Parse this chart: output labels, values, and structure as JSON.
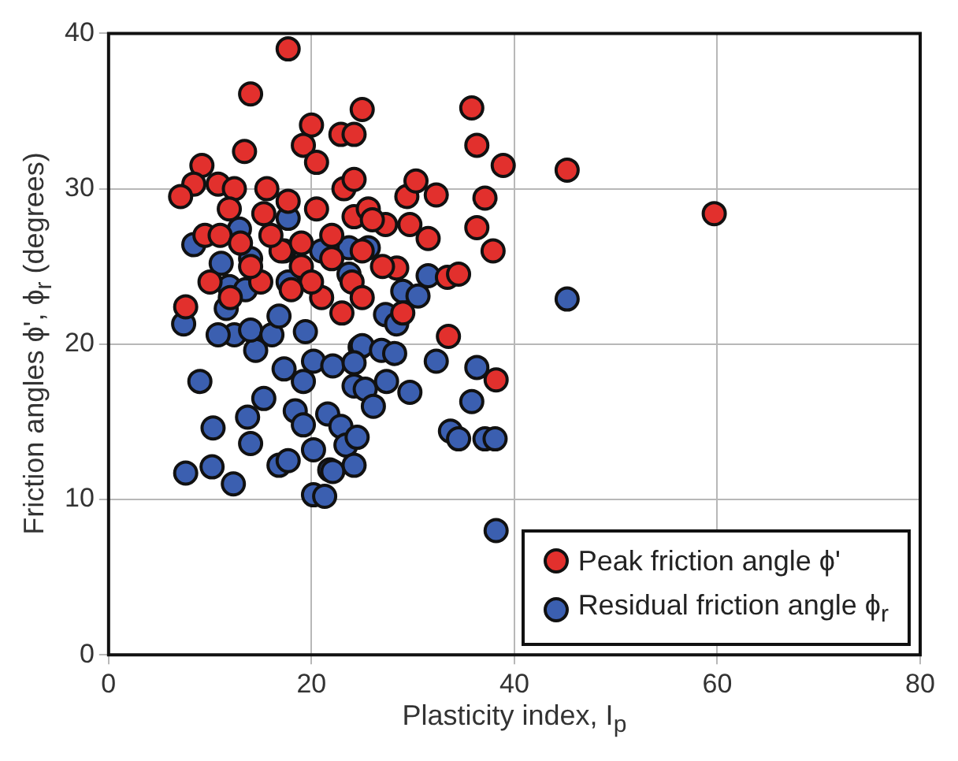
{
  "chart_data": {
    "type": "scatter",
    "xlabel": "Plasticity index, I$_{p}$",
    "ylabel": "Friction angles ϕ', ϕ$_{r}$ (degrees)",
    "xlim": [
      0,
      80
    ],
    "ylim": [
      0,
      40
    ],
    "xticks": [
      0,
      20,
      40,
      60,
      80
    ],
    "yticks": [
      0,
      10,
      20,
      30,
      40
    ],
    "grid": true,
    "legend": "bottom right",
    "marker": "circle",
    "series": [
      {
        "name": "Peak friction angle ϕ'",
        "color": "#e2302d",
        "x": [
          17.7,
          14.0,
          13.4,
          20.0,
          22.9,
          19.2,
          20.5,
          9.2,
          8.4,
          7.1,
          10.8,
          12.4,
          15.6,
          17.7,
          23.2,
          11.9,
          15.3,
          20.5,
          9.5,
          24.2,
          25.0,
          24.2,
          24.2,
          25.6,
          27.3,
          29.4,
          30.3,
          32.3,
          35.8,
          36.3,
          38.9,
          45.2,
          37.1,
          36.3,
          37.9,
          31.5,
          29.7,
          28.4,
          33.4,
          34.5,
          33.5,
          38.2,
          59.7,
          7.6,
          17,
          19,
          15,
          21,
          23,
          25,
          22,
          14,
          12,
          16,
          20,
          18,
          24,
          27,
          26,
          11,
          13,
          22,
          25,
          19,
          29,
          10
        ],
        "values": [
          39.0,
          36.1,
          32.4,
          34.1,
          33.5,
          32.8,
          31.7,
          31.5,
          30.3,
          29.5,
          30.3,
          30.0,
          30.0,
          29.2,
          30.0,
          28.7,
          28.4,
          28.7,
          27.0,
          28.2,
          35.1,
          33.5,
          30.6,
          28.7,
          27.7,
          29.5,
          30.5,
          29.6,
          35.2,
          32.8,
          31.5,
          31.2,
          29.4,
          27.5,
          26.0,
          26.8,
          27.7,
          24.9,
          24.3,
          24.5,
          20.5,
          17.7,
          28.4,
          22.4,
          26,
          25,
          24,
          23,
          22,
          26,
          27,
          25,
          23,
          27,
          24,
          23.5,
          24,
          25,
          28,
          27,
          26.5,
          25.5,
          23,
          26.5,
          22,
          24
        ]
      },
      {
        "name": "Residual friction angle ϕ$_{r}$",
        "color": "#3b5fb0",
        "x": [
          7.4,
          9.0,
          10.3,
          13.7,
          14.0,
          7.6,
          10.2,
          12.3,
          16.8,
          17.7,
          20.2,
          21.8,
          20.2,
          21.3,
          15.3,
          18.4,
          19.2,
          17.3,
          14.5,
          12.4,
          10.8,
          14.0,
          16.1,
          19.4,
          20.2,
          22.1,
          19.2,
          21.6,
          22.9,
          23.4,
          24.2,
          24.8,
          11.9,
          13.5,
          11.1,
          14.0,
          17.3,
          21.0,
          8.4,
          17.7,
          11.6,
          16.8,
          45.2,
          36.3,
          32.3,
          35.8,
          33.7,
          34.5,
          37.1,
          38.1,
          38.2,
          29.7,
          27.3,
          28.4,
          25.0,
          26.9,
          28.2,
          24.2,
          27.4,
          25.3,
          26.1,
          24.5,
          24.2,
          22.1,
          29.0,
          30.5,
          23.7,
          25.6,
          23.7,
          31.5,
          12.9,
          17.7
        ],
        "values": [
          21.3,
          17.6,
          14.6,
          15.3,
          13.6,
          11.7,
          12.1,
          11.0,
          12.2,
          12.5,
          13.2,
          11.9,
          10.3,
          10.2,
          16.5,
          15.7,
          14.8,
          18.4,
          19.6,
          20.6,
          20.6,
          20.9,
          20.6,
          20.8,
          18.9,
          18.6,
          17.6,
          15.5,
          14.7,
          13.5,
          17.3,
          19.8,
          23.7,
          23.5,
          25.2,
          25.5,
          26.0,
          26.0,
          26.4,
          24.0,
          22.3,
          21.8,
          22.9,
          18.5,
          18.9,
          16.3,
          14.4,
          13.9,
          13.9,
          13.9,
          8.0,
          16.9,
          21.9,
          21.3,
          19.9,
          19.6,
          19.4,
          18.8,
          17.6,
          17.1,
          16.0,
          14.0,
          12.2,
          11.8,
          23.4,
          23.1,
          26.2,
          26.2,
          24.5,
          24.4,
          27.4,
          28.1
        ]
      }
    ]
  }
}
